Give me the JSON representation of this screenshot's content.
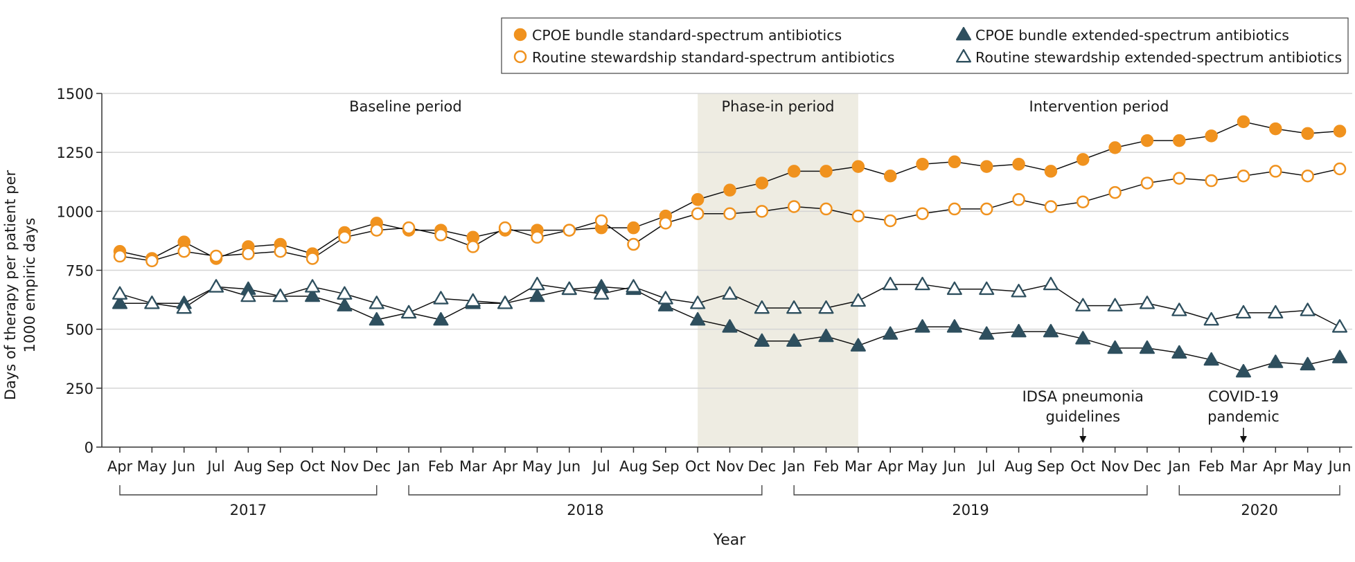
{
  "chart_data": {
    "type": "line",
    "xlabel": "Year",
    "ylabel_lines": [
      "Days of therapy per patient per",
      "1000 empiric days"
    ],
    "ylim": [
      0,
      1500
    ],
    "yticks": [
      0,
      250,
      500,
      750,
      1000,
      1250,
      1500
    ],
    "categories": [
      "Apr",
      "May",
      "Jun",
      "Jul",
      "Aug",
      "Sep",
      "Oct",
      "Nov",
      "Dec",
      "Jan",
      "Feb",
      "Mar",
      "Apr",
      "May",
      "Jun",
      "Jul",
      "Aug",
      "Sep",
      "Oct",
      "Nov",
      "Dec",
      "Jan",
      "Feb",
      "Mar",
      "Apr",
      "May",
      "Jun",
      "Jul",
      "Aug",
      "Sep",
      "Oct",
      "Nov",
      "Dec",
      "Jan",
      "Feb",
      "Mar",
      "Apr",
      "May",
      "Jun"
    ],
    "years": [
      {
        "label": "2017",
        "start": 0,
        "end": 8
      },
      {
        "label": "2018",
        "start": 9,
        "end": 20
      },
      {
        "label": "2019",
        "start": 21,
        "end": 32
      },
      {
        "label": "2020",
        "start": 33,
        "end": 38
      }
    ],
    "periods": [
      {
        "label": "Baseline period",
        "center": 8.9
      },
      {
        "label": "Phase-in period",
        "center": 20.5
      },
      {
        "label": "Intervention period",
        "center": 30.5
      }
    ],
    "shaded_period": {
      "start": 18,
      "end": 23
    },
    "annotations": [
      {
        "lines": [
          "IDSA pneumonia",
          "guidelines"
        ],
        "index": 30
      },
      {
        "lines": [
          "COVID-19",
          "pandemic"
        ],
        "index": 35
      }
    ],
    "series": [
      {
        "name": "CPOE bundle standard-spectrum antibiotics",
        "marker": "circle",
        "filled": true,
        "color": "#f0921e",
        "values": [
          830,
          800,
          870,
          800,
          850,
          860,
          820,
          910,
          950,
          920,
          920,
          890,
          920,
          920,
          920,
          930,
          930,
          980,
          1050,
          1090,
          1120,
          1170,
          1170,
          1190,
          1150,
          1200,
          1210,
          1190,
          1200,
          1170,
          1220,
          1270,
          1300,
          1300,
          1320,
          1380,
          1350,
          1330,
          1340
        ]
      },
      {
        "name": "Routine stewardship standard-spectrum antibiotics",
        "marker": "circle",
        "filled": false,
        "color": "#f0921e",
        "values": [
          810,
          790,
          830,
          810,
          820,
          830,
          800,
          890,
          920,
          930,
          900,
          850,
          930,
          890,
          920,
          960,
          860,
          950,
          990,
          990,
          1000,
          1020,
          1010,
          980,
          960,
          990,
          1010,
          1010,
          1050,
          1020,
          1040,
          1080,
          1120,
          1140,
          1130,
          1150,
          1170,
          1150,
          1180
        ]
      },
      {
        "name": "CPOE bundle extended-spectrum antibiotics",
        "marker": "triangle",
        "filled": true,
        "color": "#2e4f5e",
        "values": [
          610,
          610,
          610,
          680,
          670,
          640,
          640,
          600,
          540,
          570,
          540,
          610,
          610,
          640,
          670,
          680,
          670,
          600,
          540,
          510,
          450,
          450,
          470,
          430,
          480,
          510,
          510,
          480,
          490,
          490,
          460,
          420,
          420,
          400,
          370,
          320,
          360,
          350,
          380
        ]
      },
      {
        "name": "Routine stewardship extended-spectrum antibiotics",
        "marker": "triangle",
        "filled": false,
        "color": "#2e4f5e",
        "values": [
          650,
          610,
          590,
          680,
          640,
          640,
          680,
          650,
          610,
          570,
          630,
          620,
          610,
          690,
          670,
          650,
          680,
          630,
          610,
          650,
          590,
          590,
          590,
          620,
          690,
          690,
          670,
          670,
          660,
          690,
          600,
          600,
          610,
          580,
          540,
          570,
          570,
          580,
          510
        ]
      }
    ]
  }
}
